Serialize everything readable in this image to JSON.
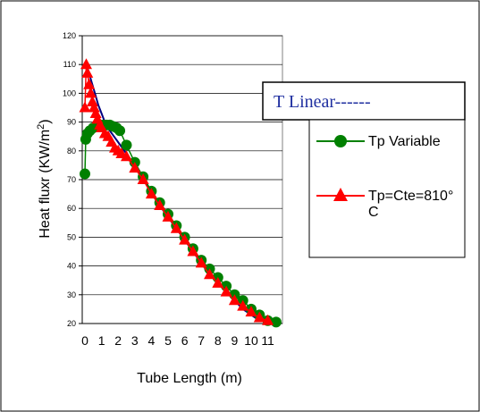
{
  "chart_data": {
    "type": "line",
    "title": "",
    "xlabel": "Tube Length (m)",
    "ylabel_text": "Heat fluxr (KW/m",
    "ylabel_sup": "2",
    "ylabel_tail": ")",
    "xlim": [
      0,
      11
    ],
    "ylim": [
      20,
      120
    ],
    "x_ticks": [
      "0",
      "1",
      "2",
      "3",
      "4",
      "5",
      "6",
      "7",
      "8",
      "9",
      "10",
      "11"
    ],
    "y_ticks": [
      20,
      30,
      40,
      50,
      60,
      70,
      80,
      90,
      100,
      110,
      120
    ],
    "grid": "horizontal",
    "legend_position": "right",
    "annotation_box": "T Linear------",
    "series": [
      {
        "name": "Tp Variable",
        "color": "#008000",
        "marker": "circle",
        "points": [
          [
            0.0,
            72
          ],
          [
            0.05,
            84
          ],
          [
            0.15,
            86
          ],
          [
            0.3,
            87
          ],
          [
            0.5,
            88
          ],
          [
            0.7,
            88.5
          ],
          [
            0.9,
            89
          ],
          [
            1.1,
            89
          ],
          [
            1.3,
            89
          ],
          [
            1.5,
            89
          ],
          [
            1.7,
            88.5
          ],
          [
            1.9,
            88
          ],
          [
            2.1,
            87
          ],
          [
            2.5,
            82
          ],
          [
            3.0,
            76
          ],
          [
            3.5,
            71
          ],
          [
            4.0,
            66
          ],
          [
            4.5,
            62
          ],
          [
            5.0,
            58
          ],
          [
            5.5,
            54
          ],
          [
            6.0,
            50
          ],
          [
            6.5,
            46
          ],
          [
            7.0,
            42
          ],
          [
            7.5,
            39
          ],
          [
            8.0,
            36
          ],
          [
            8.5,
            33
          ],
          [
            9.0,
            30
          ],
          [
            9.5,
            28
          ],
          [
            10.0,
            25
          ],
          [
            10.5,
            23
          ],
          [
            11.0,
            21
          ],
          [
            11.5,
            20.5
          ]
        ]
      },
      {
        "name": "Tp=Cte=810°\nC",
        "color": "#ff0000",
        "marker": "triangle",
        "points": [
          [
            0.0,
            95
          ],
          [
            0.08,
            110
          ],
          [
            0.15,
            107
          ],
          [
            0.25,
            103
          ],
          [
            0.35,
            100
          ],
          [
            0.45,
            97
          ],
          [
            0.55,
            95
          ],
          [
            0.65,
            93
          ],
          [
            0.75,
            91
          ],
          [
            0.9,
            89
          ],
          [
            1.0,
            88
          ],
          [
            1.2,
            86
          ],
          [
            1.4,
            85
          ],
          [
            1.6,
            83
          ],
          [
            1.8,
            81
          ],
          [
            2.0,
            80
          ],
          [
            2.2,
            79
          ],
          [
            2.5,
            78
          ],
          [
            3.0,
            74
          ],
          [
            3.5,
            70
          ],
          [
            4.0,
            65
          ],
          [
            4.5,
            61
          ],
          [
            5.0,
            57
          ],
          [
            5.5,
            53
          ],
          [
            6.0,
            49
          ],
          [
            6.5,
            45
          ],
          [
            7.0,
            41
          ],
          [
            7.5,
            37
          ],
          [
            8.0,
            34
          ],
          [
            8.5,
            31
          ],
          [
            9.0,
            28
          ],
          [
            9.5,
            26
          ],
          [
            10.0,
            24
          ],
          [
            10.5,
            22
          ],
          [
            11.0,
            21
          ]
        ]
      },
      {
        "name": "T Linear",
        "color": "#000080",
        "marker": "none",
        "points": [
          [
            0.05,
            110
          ],
          [
            0.2,
            108
          ],
          [
            0.4,
            104
          ],
          [
            0.6,
            100
          ],
          [
            0.8,
            96
          ],
          [
            1.0,
            93
          ],
          [
            1.2,
            90
          ],
          [
            1.5,
            87
          ],
          [
            2.0,
            83
          ],
          [
            2.5,
            79
          ],
          [
            3.0,
            75
          ],
          [
            3.5,
            70
          ],
          [
            4.0,
            66
          ],
          [
            4.5,
            61
          ],
          [
            5.0,
            57
          ],
          [
            5.5,
            53
          ],
          [
            6.0,
            49
          ],
          [
            6.5,
            45
          ],
          [
            7.0,
            41
          ],
          [
            7.5,
            37
          ],
          [
            8.0,
            34
          ],
          [
            8.5,
            31
          ],
          [
            9.0,
            28
          ],
          [
            9.5,
            25
          ],
          [
            10.0,
            23
          ],
          [
            10.5,
            21
          ],
          [
            11.0,
            20.5
          ]
        ]
      }
    ]
  }
}
